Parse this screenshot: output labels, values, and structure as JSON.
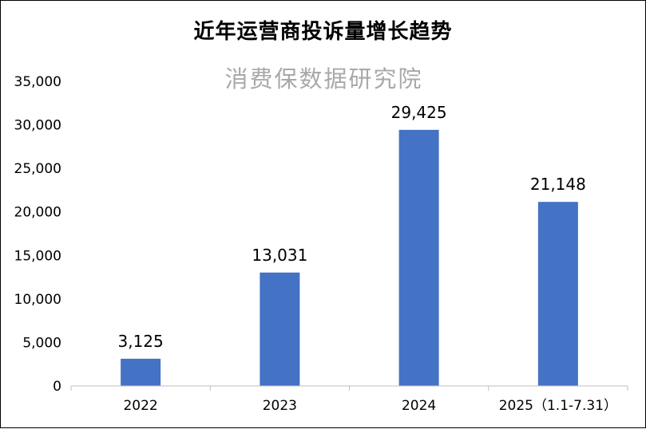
{
  "chart_data": {
    "type": "bar",
    "title": "近年运营商投诉量增长趋势",
    "watermark": "消费保数据研究院",
    "categories": [
      "2022",
      "2023",
      "2024",
      "2025（1.1-7.31）"
    ],
    "values": [
      3125,
      13031,
      29425,
      21148
    ],
    "value_labels": [
      "3,125",
      "13,031",
      "29,425",
      "21,148"
    ],
    "y_ticks": [
      {
        "value": 0,
        "label": "0"
      },
      {
        "value": 5000,
        "label": "5,000"
      },
      {
        "value": 10000,
        "label": "10,000"
      },
      {
        "value": 15000,
        "label": "15,000"
      },
      {
        "value": 20000,
        "label": "20,000"
      },
      {
        "value": 25000,
        "label": "25,000"
      },
      {
        "value": 30000,
        "label": "30,000"
      },
      {
        "value": 35000,
        "label": "35,000"
      }
    ],
    "ylim": [
      0,
      35000
    ],
    "xlabel": "",
    "ylabel": "",
    "grid": false,
    "bar_color": "#4472C4",
    "axis_color": "#BFBFBF"
  }
}
